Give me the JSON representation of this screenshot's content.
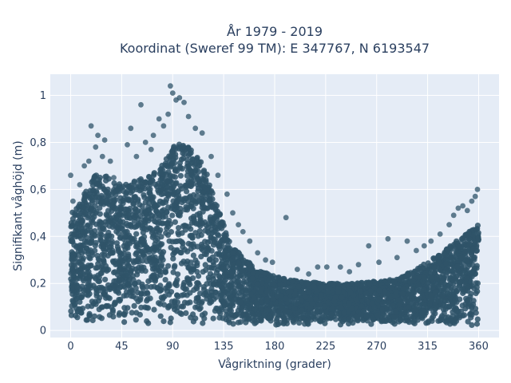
{
  "chart_data": {
    "type": "scatter",
    "title_line1": "År 1979 - 2019",
    "title_line2": "Koordinat (Sweref 99 TM): E 347767, N 6193547",
    "xlabel": "Vågriktning (grader)",
    "ylabel": "Signifikant våghöjd (m)",
    "xlim": [
      -18,
      378
    ],
    "ylim": [
      -0.03,
      1.09
    ],
    "x_ticks": [
      0,
      45,
      90,
      135,
      180,
      225,
      270,
      315,
      360
    ],
    "y_ticks": [
      0,
      0.2,
      0.4,
      0.6,
      0.8,
      1
    ],
    "y_tick_labels": [
      "0",
      "0,2",
      "0,4",
      "0,6",
      "0,8",
      "1"
    ],
    "grid": true,
    "colors": {
      "plot_background": "#e5ecf6",
      "grid": "#ffffff",
      "marker": "#2f5469"
    },
    "envelope": {
      "x": [
        0,
        10,
        20,
        30,
        45,
        60,
        75,
        90,
        100,
        110,
        120,
        130,
        140,
        150,
        165,
        180,
        200,
        225,
        250,
        270,
        290,
        300,
        315,
        330,
        340,
        350,
        360
      ],
      "upper": [
        0.5,
        0.56,
        0.66,
        0.66,
        0.62,
        0.64,
        0.68,
        0.78,
        0.8,
        0.76,
        0.68,
        0.52,
        0.38,
        0.32,
        0.26,
        0.23,
        0.21,
        0.2,
        0.2,
        0.21,
        0.22,
        0.25,
        0.29,
        0.34,
        0.38,
        0.42,
        0.45
      ]
    },
    "outliers": [
      {
        "x": 0,
        "y": 0.66
      },
      {
        "x": 2,
        "y": 0.55
      },
      {
        "x": 8,
        "y": 0.62
      },
      {
        "x": 12,
        "y": 0.7
      },
      {
        "x": 16,
        "y": 0.72
      },
      {
        "x": 18,
        "y": 0.87
      },
      {
        "x": 22,
        "y": 0.78
      },
      {
        "x": 24,
        "y": 0.83
      },
      {
        "x": 28,
        "y": 0.74
      },
      {
        "x": 30,
        "y": 0.81
      },
      {
        "x": 35,
        "y": 0.72
      },
      {
        "x": 38,
        "y": 0.65
      },
      {
        "x": 50,
        "y": 0.79
      },
      {
        "x": 53,
        "y": 0.86
      },
      {
        "x": 58,
        "y": 0.74
      },
      {
        "x": 62,
        "y": 0.96
      },
      {
        "x": 66,
        "y": 0.8
      },
      {
        "x": 71,
        "y": 0.77
      },
      {
        "x": 73,
        "y": 0.83
      },
      {
        "x": 78,
        "y": 0.9
      },
      {
        "x": 82,
        "y": 0.87
      },
      {
        "x": 86,
        "y": 0.92
      },
      {
        "x": 88,
        "y": 1.04
      },
      {
        "x": 90,
        "y": 1.01
      },
      {
        "x": 93,
        "y": 0.98
      },
      {
        "x": 96,
        "y": 0.99
      },
      {
        "x": 100,
        "y": 0.97
      },
      {
        "x": 104,
        "y": 0.91
      },
      {
        "x": 110,
        "y": 0.86
      },
      {
        "x": 116,
        "y": 0.84
      },
      {
        "x": 124,
        "y": 0.74
      },
      {
        "x": 130,
        "y": 0.66
      },
      {
        "x": 138,
        "y": 0.58
      },
      {
        "x": 143,
        "y": 0.5
      },
      {
        "x": 148,
        "y": 0.45
      },
      {
        "x": 152,
        "y": 0.42
      },
      {
        "x": 158,
        "y": 0.38
      },
      {
        "x": 165,
        "y": 0.33
      },
      {
        "x": 172,
        "y": 0.3
      },
      {
        "x": 178,
        "y": 0.29
      },
      {
        "x": 190,
        "y": 0.48
      },
      {
        "x": 200,
        "y": 0.26
      },
      {
        "x": 210,
        "y": 0.24
      },
      {
        "x": 218,
        "y": 0.27
      },
      {
        "x": 226,
        "y": 0.27
      },
      {
        "x": 238,
        "y": 0.27
      },
      {
        "x": 246,
        "y": 0.25
      },
      {
        "x": 254,
        "y": 0.28
      },
      {
        "x": 263,
        "y": 0.36
      },
      {
        "x": 272,
        "y": 0.29
      },
      {
        "x": 280,
        "y": 0.39
      },
      {
        "x": 288,
        "y": 0.31
      },
      {
        "x": 297,
        "y": 0.38
      },
      {
        "x": 305,
        "y": 0.34
      },
      {
        "x": 312,
        "y": 0.36
      },
      {
        "x": 318,
        "y": 0.38
      },
      {
        "x": 326,
        "y": 0.41
      },
      {
        "x": 334,
        "y": 0.45
      },
      {
        "x": 338,
        "y": 0.49
      },
      {
        "x": 342,
        "y": 0.52
      },
      {
        "x": 346,
        "y": 0.53
      },
      {
        "x": 350,
        "y": 0.51
      },
      {
        "x": 354,
        "y": 0.55
      },
      {
        "x": 357,
        "y": 0.57
      },
      {
        "x": 359,
        "y": 0.6
      }
    ]
  }
}
